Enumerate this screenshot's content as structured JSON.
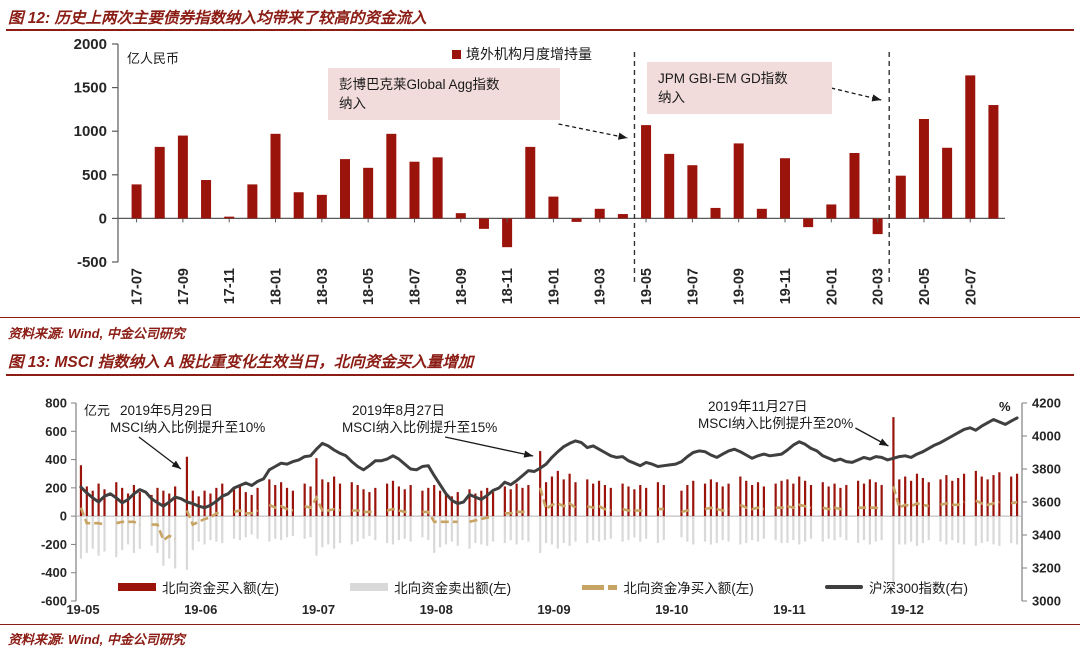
{
  "fig12": {
    "title": "图 12: 历史上两次主要债券指数纳入均带来了较高的资金流入",
    "unit_label": "亿人民币",
    "legend_label": "境外机构月度增持量",
    "annotation1_line1": "彭博巴克莱Global Agg指数",
    "annotation1_line2": "纳入",
    "annotation2_line1": "JPM GBI-EM GD指数",
    "annotation2_line2": "纳入",
    "source": "资料来源: Wind, 中金公司研究"
  },
  "fig13": {
    "title": "图 13: MSCI 指数纳入 A 股比重变化生效当日，北向资金买入量增加",
    "left_unit": "亿元",
    "right_unit": "%",
    "source": "资料来源: Wind, 中金公司研究",
    "annotations": [
      {
        "line1": "2019年5月29日",
        "line2": "MSCI纳入比例提升至10%"
      },
      {
        "line1": "2019年8月27日",
        "line2": "MSCI纳入比例提升至15%"
      },
      {
        "line1": "2019年11月27日",
        "line2": "MSCI纳入比例提升至20%"
      }
    ],
    "legend": [
      "北向资金买入额(左)",
      "北向资金卖出额(左)",
      "北向资金净买入额(左)",
      "沪深300指数(右)"
    ]
  },
  "chart_data": [
    {
      "id": "fig12",
      "type": "bar",
      "title": "图 12: 历史上两次主要债券指数纳入均带来了较高的资金流入",
      "ylabel": "亿人民币",
      "legend": [
        "境外机构月度增持量"
      ],
      "ylim": [
        -500,
        2000
      ],
      "yticks": [
        2000,
        1500,
        1000,
        500,
        0,
        -500
      ],
      "bar_color": "#9a140c",
      "categories": [
        "17-07",
        "17-08",
        "17-09",
        "17-10",
        "17-11",
        "17-12",
        "18-01",
        "18-02",
        "18-03",
        "18-04",
        "18-05",
        "18-06",
        "18-07",
        "18-08",
        "18-09",
        "18-10",
        "18-11",
        "18-12",
        "19-01",
        "19-02",
        "19-03",
        "19-04",
        "19-05",
        "19-06",
        "19-07",
        "19-08",
        "19-09",
        "19-10",
        "19-11",
        "19-12",
        "20-01",
        "20-02",
        "20-03",
        "20-04",
        "20-05",
        "20-06",
        "20-07",
        "20-08"
      ],
      "values": [
        390,
        820,
        950,
        440,
        20,
        390,
        970,
        300,
        270,
        680,
        580,
        970,
        650,
        700,
        60,
        -120,
        -330,
        820,
        250,
        -40,
        110,
        50,
        1070,
        740,
        610,
        120,
        860,
        110,
        690,
        -100,
        160,
        750,
        -180,
        490,
        1140,
        810,
        1640,
        1300
      ],
      "events": [
        {
          "label_lines": [
            "彭博巴克莱Global Agg指数",
            "纳入"
          ],
          "line_between": [
            "19-04",
            "19-05"
          ]
        },
        {
          "label_lines": [
            "JPM GBI-EM GD指数",
            "纳入"
          ],
          "line_between": [
            "20-03",
            "20-04"
          ]
        }
      ]
    },
    {
      "id": "fig13",
      "type": "combo",
      "title": "图 13: MSCI 指数纳入 A 股比重变化生效当日，北向资金买入量增加",
      "left_unit": "亿元",
      "right_unit": "%",
      "left_ylim": [
        -600,
        800
      ],
      "left_yticks": [
        800,
        600,
        400,
        200,
        0,
        -200,
        -400,
        -600
      ],
      "right_ylim": [
        3000,
        4200
      ],
      "right_yticks": [
        4200,
        4000,
        3800,
        3600,
        3400,
        3200,
        3000
      ],
      "x_labels": [
        "19-05",
        "19-06",
        "19-07",
        "19-08",
        "19-09",
        "19-10",
        "19-11",
        "19-12"
      ],
      "slots_per_month": 20,
      "events": [
        {
          "slot": 18,
          "label_lines": [
            "2019年5月29日",
            "MSCI纳入比例提升至10%"
          ],
          "value": 420
        },
        {
          "slot": 78,
          "label_lines": [
            "2019年8月27日",
            "MSCI纳入比例提升至15%"
          ],
          "value": 460
        },
        {
          "slot": 138,
          "label_lines": [
            "2019年11月27日",
            "MSCI纳入比例提升至20%"
          ],
          "value": 700
        }
      ],
      "series": [
        {
          "name": "北向资金买入额(左)",
          "type": "bar",
          "axis": "left",
          "color": "#9a140c",
          "values": [
            [
              360,
              210,
              180,
              230,
              190,
              0,
              240,
              200,
              160,
              220,
              170,
              0,
              150,
              200,
              180,
              160,
              210,
              0,
              420,
              180
            ],
            [
              140,
              180,
              160,
              200,
              230,
              0,
              190,
              210,
              170,
              150,
              200,
              0,
              260,
              220,
              240,
              200,
              180,
              0,
              230,
              210
            ],
            [
              410,
              260,
              240,
              280,
              230,
              0,
              240,
              220,
              190,
              170,
              200,
              0,
              230,
              250,
              210,
              190,
              220,
              0,
              180,
              200
            ],
            [
              220,
              180,
              160,
              140,
              170,
              0,
              190,
              160,
              180,
              200,
              170,
              0,
              210,
              190,
              230,
              200,
              220,
              0,
              460,
              240
            ],
            [
              280,
              320,
              260,
              300,
              240,
              0,
              260,
              230,
              250,
              220,
              200,
              0,
              230,
              210,
              190,
              220,
              200,
              0,
              240,
              220
            ],
            [
              0,
              0,
              180,
              220,
              250,
              0,
              230,
              260,
              240,
              210,
              230,
              0,
              280,
              250,
              220,
              240,
              210,
              0,
              230,
              250
            ],
            [
              260,
              230,
              280,
              250,
              220,
              0,
              240,
              210,
              230,
              200,
              220,
              0,
              250,
              230,
              260,
              240,
              220,
              0,
              700,
              260
            ],
            [
              280,
              250,
              300,
              270,
              240,
              0,
              260,
              290,
              250,
              270,
              300,
              0,
              320,
              280,
              260,
              290,
              310,
              0,
              280,
              300
            ]
          ]
        },
        {
          "name": "北向资金卖出额(左)",
          "type": "bar",
          "axis": "left",
          "color": "#d9d9d9",
          "values": [
            [
              -300,
              -260,
              -230,
              -280,
              -250,
              0,
              -290,
              -240,
              -200,
              -260,
              -230,
              0,
              -210,
              -260,
              -350,
              -300,
              -370,
              0,
              -380,
              -240
            ],
            [
              -180,
              -200,
              -170,
              -180,
              -190,
              0,
              -160,
              -170,
              -150,
              -130,
              -160,
              0,
              -180,
              -160,
              -170,
              -150,
              -140,
              0,
              -160,
              -150
            ],
            [
              -280,
              -220,
              -200,
              -230,
              -190,
              0,
              -200,
              -180,
              -160,
              -140,
              -170,
              0,
              -190,
              -200,
              -170,
              -160,
              -180,
              0,
              -150,
              -170
            ],
            [
              -260,
              -220,
              -200,
              -180,
              -210,
              0,
              -230,
              -190,
              -200,
              -210,
              -180,
              0,
              -190,
              -170,
              -200,
              -170,
              -180,
              0,
              -260,
              -190
            ],
            [
              -200,
              -230,
              -190,
              -210,
              -180,
              0,
              -190,
              -170,
              -180,
              -170,
              -160,
              0,
              -180,
              -170,
              -150,
              -180,
              -160,
              0,
              -190,
              -170
            ],
            [
              0,
              0,
              -150,
              -180,
              -200,
              0,
              -180,
              -200,
              -190,
              -170,
              -180,
              0,
              -200,
              -190,
              -170,
              -180,
              -160,
              0,
              -170,
              -190
            ],
            [
              -190,
              -170,
              -200,
              -180,
              -160,
              0,
              -180,
              -160,
              -170,
              -150,
              -170,
              0,
              -190,
              -170,
              -200,
              -180,
              -170,
              0,
              -490,
              -200
            ],
            [
              -200,
              -180,
              -210,
              -190,
              -170,
              0,
              -180,
              -200,
              -170,
              -190,
              -200,
              0,
              -210,
              -190,
              -180,
              -200,
              -210,
              0,
              -190,
              -200
            ]
          ]
        },
        {
          "name": "北向资金净买入额(左)",
          "type": "dashed-line",
          "axis": "left",
          "color": "#c8a464",
          "values": [
            [
              60,
              -50,
              -50,
              -50,
              -60,
              null,
              -50,
              -40,
              -40,
              -40,
              -60,
              null,
              -60,
              -60,
              -170,
              -140,
              -160,
              null,
              40,
              -60
            ],
            [
              -40,
              -20,
              -10,
              20,
              40,
              null,
              30,
              40,
              20,
              20,
              40,
              null,
              80,
              60,
              70,
              50,
              40,
              null,
              70,
              60
            ],
            [
              130,
              40,
              40,
              50,
              40,
              null,
              40,
              40,
              30,
              30,
              30,
              null,
              40,
              50,
              40,
              30,
              40,
              null,
              30,
              30
            ],
            [
              -40,
              -40,
              -40,
              -40,
              -40,
              null,
              -40,
              -30,
              -20,
              -10,
              -10,
              null,
              20,
              20,
              30,
              30,
              40,
              null,
              200,
              50
            ],
            [
              80,
              90,
              70,
              90,
              60,
              null,
              70,
              60,
              70,
              50,
              40,
              null,
              50,
              40,
              40,
              40,
              40,
              null,
              50,
              50
            ],
            [
              null,
              null,
              30,
              40,
              50,
              null,
              50,
              60,
              50,
              40,
              50,
              null,
              80,
              60,
              50,
              60,
              50,
              null,
              60,
              60
            ],
            [
              70,
              60,
              80,
              70,
              60,
              null,
              60,
              50,
              60,
              50,
              50,
              null,
              60,
              60,
              60,
              60,
              50,
              null,
              210,
              60
            ],
            [
              80,
              70,
              90,
              80,
              70,
              null,
              80,
              90,
              80,
              80,
              100,
              null,
              110,
              90,
              80,
              90,
              100,
              null,
              90,
              100
            ]
          ]
        },
        {
          "name": "沪深300指数(右)",
          "type": "line",
          "axis": "right",
          "color": "#3f3f3f",
          "values": [
            [
              3690,
              3655,
              3625,
              3600,
              3635,
              3650,
              3625,
              3595,
              3615,
              3650,
              3675,
              3660,
              3620,
              3595,
              3575,
              3600,
              3630,
              3620,
              3600,
              3590
            ],
            [
              3575,
              3565,
              3580,
              3605,
              3635,
              3650,
              3685,
              3700,
              3715,
              3700,
              3725,
              3740,
              3795,
              3815,
              3835,
              3830,
              3845,
              3855,
              3875,
              3880
            ],
            [
              3920,
              3955,
              3940,
              3915,
              3895,
              3880,
              3845,
              3815,
              3795,
              3820,
              3850,
              3850,
              3860,
              3880,
              3860,
              3830,
              3800,
              3795,
              3815,
              3820
            ],
            [
              3760,
              3705,
              3650,
              3610,
              3590,
              3600,
              3645,
              3630,
              3615,
              3640,
              3670,
              3685,
              3720,
              3705,
              3730,
              3760,
              3790,
              3785,
              3805,
              3830
            ],
            [
              3870,
              3905,
              3935,
              3955,
              3970,
              3960,
              3930,
              3940,
              3920,
              3900,
              3880,
              3870,
              3875,
              3850,
              3835,
              3820,
              3840,
              3830,
              3815,
              3820
            ],
            [
              3825,
              3830,
              3845,
              3875,
              3900,
              3910,
              3905,
              3885,
              3870,
              3890,
              3910,
              3920,
              3905,
              3885,
              3865,
              3880,
              3890,
              3880,
              3885,
              3890
            ],
            [
              3915,
              3945,
              3965,
              3950,
              3925,
              3910,
              3880,
              3865,
              3850,
              3860,
              3845,
              3840,
              3855,
              3870,
              3860,
              3875,
              3870,
              3855,
              3865,
              3875
            ],
            [
              3880,
              3870,
              3890,
              3905,
              3925,
              3945,
              3960,
              3980,
              4000,
              4020,
              4040,
              4050,
              4035,
              4060,
              4080,
              4100,
              4085,
              4070,
              4090,
              4110
            ]
          ]
        }
      ]
    }
  ]
}
